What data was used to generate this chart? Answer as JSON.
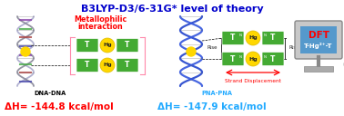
{
  "background_color": "#ffffff",
  "title": "B3LYP-D3/6-31G* level of theory",
  "title_color": "#0000CC",
  "title_fontsize": 8.0,
  "title_fontweight": "bold",
  "metallo1": "Metallophilic",
  "metallo2": "interaction",
  "metallo_color": "#FF0000",
  "metallo_fontsize": 5.8,
  "label_dna": "DNA-DNA",
  "label_pna": "PNA-PNA",
  "label_dna_color": "#000000",
  "label_pna_color": "#22AAFF",
  "label_fontsize": 4.8,
  "label_fontweight": "bold",
  "dh_dna_text": "ΔH= -144.8 kcal/mol",
  "dh_pna_text": "ΔH= -147.9 kcal/mol",
  "dh_dna_color": "#FF0000",
  "dh_pna_color": "#22AAFF",
  "dh_fontsize": 7.5,
  "dh_fontweight": "bold",
  "strand_disp_text": "Strand Displacement",
  "strand_disp_color": "#FF0000",
  "strand_disp_fontsize": 4.2,
  "rise_text": "Rise",
  "rise_fontsize": 4.0,
  "dft_text": "DFT",
  "dft_subtext": "T-Hg²⁺-T",
  "dft_color": "#FF0000",
  "dft_subcolor": "#0000CC",
  "dft_fontsize": 7.5,
  "dft_sub_fontsize": 5.0,
  "fig_width": 3.78,
  "fig_height": 1.28,
  "dpi": 100
}
